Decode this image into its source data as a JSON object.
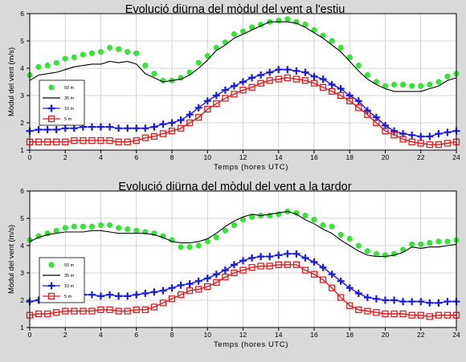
{
  "figure": {
    "background": "#d9d9d9",
    "plot_background": "#ffffff"
  },
  "chart_data": [
    {
      "type": "line",
      "title": "Evolució diürna del mòdul del vent a l'estiu",
      "xlabel": "Temps (hores UTC)",
      "ylabel": "Mòdul del vent (m/s)",
      "xlim": [
        0,
        24
      ],
      "ylim": [
        1,
        6
      ],
      "xticks": [
        0,
        2,
        4,
        6,
        8,
        10,
        12,
        14,
        16,
        18,
        20,
        22,
        24
      ],
      "yticks": [
        1,
        2,
        3,
        4,
        5,
        6
      ],
      "grid": true,
      "legend": "left-middle",
      "x": [
        0,
        0.5,
        1,
        1.5,
        2,
        2.5,
        3,
        3.5,
        4,
        4.5,
        5,
        5.5,
        6,
        6.5,
        7,
        7.5,
        8,
        8.5,
        9,
        9.5,
        10,
        10.5,
        11,
        11.5,
        12,
        12.5,
        13,
        13.5,
        14,
        14.5,
        15,
        15.5,
        16,
        16.5,
        17,
        17.5,
        18,
        18.5,
        19,
        19.5,
        20,
        20.5,
        21,
        21.5,
        22,
        22.5,
        23,
        23.5,
        24
      ],
      "series": [
        {
          "name": "50 m",
          "color": "#33e633",
          "marker": "circle",
          "line": false,
          "values": [
            3.75,
            4.05,
            4.1,
            4.2,
            4.35,
            4.4,
            4.5,
            4.55,
            4.6,
            4.75,
            4.7,
            4.6,
            4.55,
            4.1,
            3.8,
            3.55,
            3.55,
            3.65,
            3.85,
            4.2,
            4.45,
            4.75,
            4.95,
            5.25,
            5.35,
            5.5,
            5.6,
            5.7,
            5.75,
            5.8,
            5.7,
            5.6,
            5.4,
            5.2,
            5.0,
            4.75,
            4.4,
            4.1,
            3.75,
            3.5,
            3.35,
            3.4,
            3.4,
            3.35,
            3.35,
            3.4,
            3.5,
            3.7,
            3.8
          ]
        },
        {
          "name": "35 m",
          "color": "#000000",
          "marker": "none",
          "line": true,
          "values": [
            3.55,
            3.75,
            3.8,
            3.85,
            3.95,
            4.05,
            4.1,
            4.15,
            4.15,
            4.25,
            4.2,
            4.25,
            4.15,
            3.8,
            3.65,
            3.5,
            3.55,
            3.6,
            3.75,
            4.0,
            4.3,
            4.65,
            4.85,
            5.1,
            5.25,
            5.4,
            5.55,
            5.7,
            5.7,
            5.7,
            5.65,
            5.5,
            5.3,
            5.1,
            4.85,
            4.6,
            4.25,
            3.9,
            3.6,
            3.4,
            3.25,
            3.15,
            3.15,
            3.15,
            3.15,
            3.25,
            3.35,
            3.55,
            3.65
          ]
        },
        {
          "name": "10 m",
          "color": "#1a1ae6",
          "marker": "plus",
          "line": true,
          "values": [
            1.7,
            1.75,
            1.75,
            1.75,
            1.8,
            1.8,
            1.85,
            1.85,
            1.85,
            1.85,
            1.8,
            1.8,
            1.8,
            1.8,
            1.85,
            1.95,
            2.0,
            2.1,
            2.3,
            2.55,
            2.8,
            3.0,
            3.2,
            3.35,
            3.5,
            3.65,
            3.75,
            3.85,
            3.95,
            3.95,
            3.9,
            3.85,
            3.7,
            3.6,
            3.4,
            3.25,
            3.0,
            2.8,
            2.45,
            2.2,
            1.9,
            1.7,
            1.6,
            1.55,
            1.5,
            1.5,
            1.6,
            1.65,
            1.7
          ]
        },
        {
          "name": "5 m",
          "color": "#e61a1a",
          "marker": "square",
          "line": true,
          "values": [
            1.3,
            1.3,
            1.3,
            1.3,
            1.3,
            1.35,
            1.35,
            1.35,
            1.35,
            1.35,
            1.3,
            1.3,
            1.35,
            1.45,
            1.5,
            1.6,
            1.7,
            1.8,
            2.0,
            2.2,
            2.5,
            2.7,
            2.9,
            3.05,
            3.2,
            3.3,
            3.45,
            3.55,
            3.6,
            3.65,
            3.6,
            3.55,
            3.45,
            3.3,
            3.15,
            3.0,
            2.8,
            2.55,
            2.3,
            2.0,
            1.7,
            1.55,
            1.4,
            1.3,
            1.25,
            1.2,
            1.2,
            1.25,
            1.3
          ]
        }
      ]
    },
    {
      "type": "line",
      "title": "Evolució diürna del mòdul del vent a la tardor",
      "xlabel": "Temps (hores UTC)",
      "ylabel": "Mòdul del vent (m/s)",
      "xlim": [
        0,
        24
      ],
      "ylim": [
        1,
        6
      ],
      "xticks": [
        0,
        2,
        4,
        6,
        8,
        10,
        12,
        14,
        16,
        18,
        20,
        22,
        24
      ],
      "yticks": [
        1,
        2,
        3,
        4,
        5,
        6
      ],
      "grid": true,
      "legend": "left-middle",
      "x": [
        0,
        0.5,
        1,
        1.5,
        2,
        2.5,
        3,
        3.5,
        4,
        4.5,
        5,
        5.5,
        6,
        6.5,
        7,
        7.5,
        8,
        8.5,
        9,
        9.5,
        10,
        10.5,
        11,
        11.5,
        12,
        12.5,
        13,
        13.5,
        14,
        14.5,
        15,
        15.5,
        16,
        16.5,
        17,
        17.5,
        18,
        18.5,
        19,
        19.5,
        20,
        20.5,
        21,
        21.5,
        22,
        22.5,
        23,
        23.5,
        24
      ],
      "series": [
        {
          "name": "50 m",
          "color": "#33e633",
          "marker": "circle",
          "line": false,
          "values": [
            4.2,
            4.35,
            4.45,
            4.55,
            4.65,
            4.7,
            4.7,
            4.7,
            4.75,
            4.75,
            4.65,
            4.6,
            4.55,
            4.5,
            4.45,
            4.35,
            4.2,
            3.95,
            3.95,
            4.0,
            4.15,
            4.3,
            4.55,
            4.75,
            4.95,
            5.05,
            5.1,
            5.1,
            5.15,
            5.25,
            5.2,
            5.1,
            4.95,
            4.75,
            4.7,
            4.4,
            4.25,
            4.0,
            3.8,
            3.7,
            3.65,
            3.7,
            3.85,
            4.05,
            4.05,
            4.1,
            4.15,
            4.15,
            4.2
          ]
        },
        {
          "name": "35 m",
          "color": "#000000",
          "marker": "none",
          "line": true,
          "values": [
            4.15,
            4.3,
            4.4,
            4.45,
            4.5,
            4.5,
            4.5,
            4.55,
            4.55,
            4.5,
            4.45,
            4.45,
            4.45,
            4.45,
            4.4,
            4.3,
            4.15,
            4.1,
            4.1,
            4.15,
            4.25,
            4.45,
            4.7,
            4.9,
            5.05,
            5.15,
            5.1,
            5.15,
            5.2,
            5.25,
            5.15,
            4.95,
            4.8,
            4.6,
            4.45,
            4.2,
            4.0,
            3.8,
            3.65,
            3.6,
            3.6,
            3.65,
            3.75,
            3.95,
            3.9,
            3.95,
            3.95,
            4.0,
            4.05
          ]
        },
        {
          "name": "10 m",
          "color": "#1a1ae6",
          "marker": "plus",
          "line": true,
          "values": [
            1.95,
            2.0,
            2.05,
            2.1,
            2.15,
            2.15,
            2.2,
            2.2,
            2.15,
            2.2,
            2.15,
            2.15,
            2.2,
            2.25,
            2.3,
            2.35,
            2.45,
            2.55,
            2.6,
            2.7,
            2.8,
            2.95,
            3.1,
            3.3,
            3.45,
            3.55,
            3.6,
            3.6,
            3.65,
            3.7,
            3.7,
            3.55,
            3.4,
            3.2,
            2.95,
            2.7,
            2.45,
            2.25,
            2.1,
            2.05,
            2.0,
            2.0,
            1.95,
            1.95,
            1.95,
            1.9,
            1.9,
            1.95,
            1.95
          ]
        },
        {
          "name": "5 m",
          "color": "#e61a1a",
          "marker": "square",
          "line": true,
          "values": [
            1.45,
            1.5,
            1.5,
            1.55,
            1.6,
            1.6,
            1.6,
            1.6,
            1.65,
            1.65,
            1.6,
            1.6,
            1.65,
            1.65,
            1.75,
            1.9,
            2.05,
            2.2,
            2.35,
            2.4,
            2.5,
            2.65,
            2.85,
            3.0,
            3.1,
            3.2,
            3.25,
            3.25,
            3.3,
            3.3,
            3.3,
            3.1,
            2.95,
            2.75,
            2.45,
            2.1,
            1.8,
            1.65,
            1.6,
            1.55,
            1.5,
            1.5,
            1.5,
            1.45,
            1.45,
            1.4,
            1.45,
            1.45,
            1.45
          ]
        }
      ]
    }
  ]
}
